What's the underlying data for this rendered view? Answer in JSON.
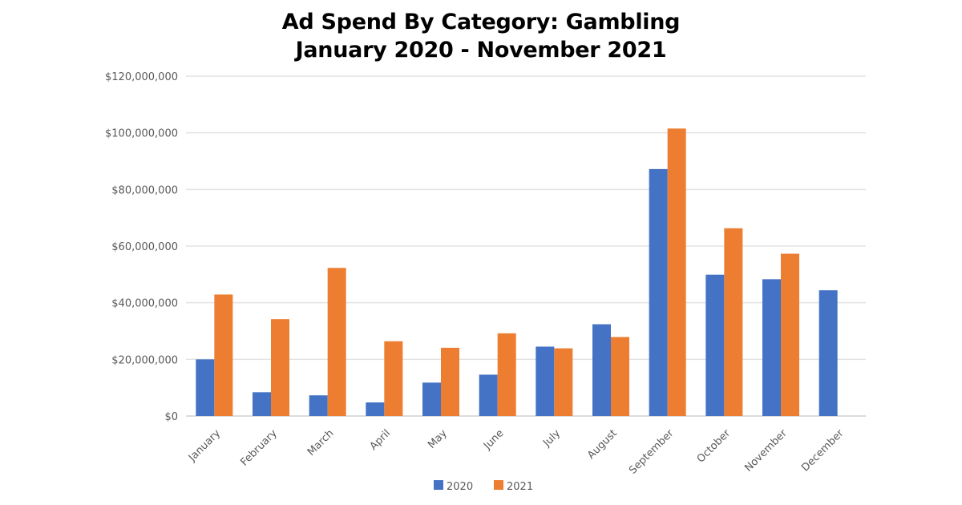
{
  "chart_data": {
    "type": "bar",
    "title": "Ad Spend By Category: Gambling",
    "subtitle": "January 2020 - November 2021",
    "xlabel": "",
    "ylabel": "",
    "ylim": [
      0,
      120000000
    ],
    "yticks": [
      0,
      20000000,
      40000000,
      60000000,
      80000000,
      100000000,
      120000000
    ],
    "ytick_labels": [
      "$0",
      "$20,000,000",
      "$40,000,000",
      "$60,000,000",
      "$80,000,000",
      "$100,000,000",
      "$120,000,000"
    ],
    "grid": true,
    "legend": "bottom",
    "categories": [
      "January",
      "February",
      "March",
      "April",
      "May",
      "June",
      "July",
      "August",
      "September",
      "October",
      "November",
      "December"
    ],
    "series": [
      {
        "name": "2020",
        "color": "#4472C4",
        "values": [
          20000000,
          8400000,
          7300000,
          4800000,
          11800000,
          14600000,
          24500000,
          32400000,
          87200000,
          49900000,
          48300000,
          44400000
        ]
      },
      {
        "name": "2021",
        "color": "#ED7D31",
        "values": [
          42900000,
          34200000,
          52300000,
          26400000,
          24100000,
          29200000,
          23900000,
          27900000,
          101500000,
          66300000,
          57300000,
          null
        ]
      }
    ]
  }
}
